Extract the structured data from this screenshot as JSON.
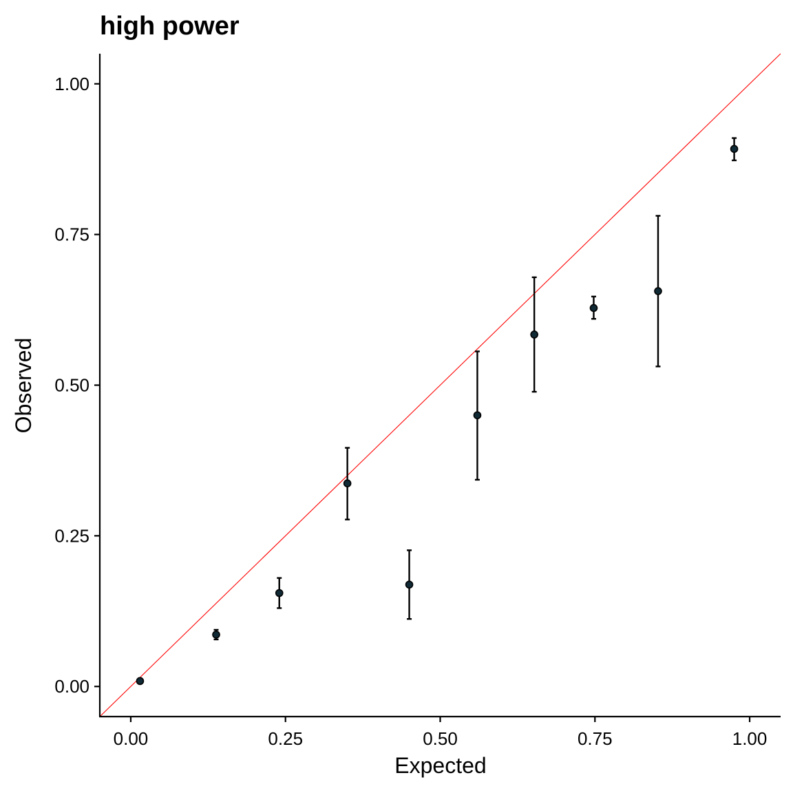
{
  "chart_data": {
    "type": "scatter",
    "title": "high power",
    "xlabel": "Expected",
    "ylabel": "Observed",
    "xlim": [
      -0.05,
      1.05
    ],
    "ylim": [
      -0.05,
      1.05
    ],
    "x_ticks": [
      0.0,
      0.25,
      0.5,
      0.75,
      1.0
    ],
    "x_tick_labels": [
      "0.00",
      "0.25",
      "0.50",
      "0.75",
      "1.00"
    ],
    "y_ticks": [
      0.0,
      0.25,
      0.5,
      0.75,
      1.0
    ],
    "y_tick_labels": [
      "0.00",
      "0.25",
      "0.50",
      "0.75",
      "1.00"
    ],
    "grid": false,
    "legend": "none",
    "reference_line": {
      "slope": 1,
      "intercept": 0,
      "color": "#ff0000"
    },
    "point_color": "#102a36",
    "points": [
      {
        "x": 0.015,
        "y": 0.009,
        "ymin": 0.007,
        "ymax": 0.011
      },
      {
        "x": 0.138,
        "y": 0.086,
        "ymin": 0.078,
        "ymax": 0.094
      },
      {
        "x": 0.24,
        "y": 0.155,
        "ymin": 0.13,
        "ymax": 0.18
      },
      {
        "x": 0.35,
        "y": 0.337,
        "ymin": 0.277,
        "ymax": 0.396
      },
      {
        "x": 0.45,
        "y": 0.169,
        "ymin": 0.112,
        "ymax": 0.226
      },
      {
        "x": 0.56,
        "y": 0.45,
        "ymin": 0.343,
        "ymax": 0.556
      },
      {
        "x": 0.652,
        "y": 0.584,
        "ymin": 0.489,
        "ymax": 0.679
      },
      {
        "x": 0.748,
        "y": 0.628,
        "ymin": 0.61,
        "ymax": 0.647
      },
      {
        "x": 0.852,
        "y": 0.656,
        "ymin": 0.531,
        "ymax": 0.781
      },
      {
        "x": 0.975,
        "y": 0.892,
        "ymin": 0.873,
        "ymax": 0.91
      }
    ]
  }
}
